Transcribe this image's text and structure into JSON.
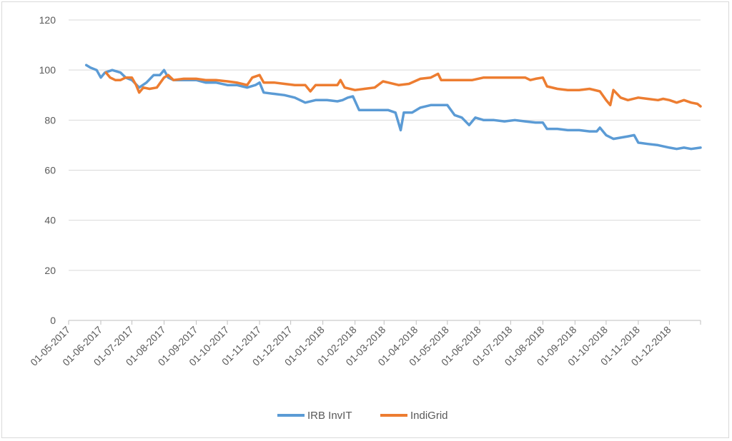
{
  "chart_data": {
    "type": "line",
    "title": "",
    "xlabel": "",
    "ylabel": "",
    "ylim": [
      0,
      120
    ],
    "yticks": [
      0,
      20,
      40,
      60,
      80,
      100,
      120
    ],
    "xlim": [
      "2017-05-01",
      "2018-12-31"
    ],
    "xticks": [
      "01-05-2017",
      "01-06-2017",
      "01-07-2017",
      "01-08-2017",
      "01-09-2017",
      "01-10-2017",
      "01-11-2017",
      "01-12-2017",
      "01-01-2018",
      "01-02-2018",
      "01-03-2018",
      "01-04-2018",
      "01-05-2018",
      "01-06-2018",
      "01-07-2018",
      "01-08-2018",
      "01-09-2018",
      "01-10-2018",
      "01-11-2018",
      "01-12-2018"
    ],
    "grid": true,
    "legend": "bottom",
    "series": [
      {
        "name": "IRB InvIT",
        "color": "#5b9bd5",
        "points": [
          [
            "2017-05-18",
            102
          ],
          [
            "2017-05-22",
            101
          ],
          [
            "2017-05-28",
            100
          ],
          [
            "2017-06-01",
            97
          ],
          [
            "2017-06-05",
            99
          ],
          [
            "2017-06-12",
            100
          ],
          [
            "2017-06-20",
            99
          ],
          [
            "2017-06-25",
            97
          ],
          [
            "2017-07-01",
            96
          ],
          [
            "2017-07-08",
            93
          ],
          [
            "2017-07-15",
            95
          ],
          [
            "2017-07-22",
            98
          ],
          [
            "2017-07-28",
            98
          ],
          [
            "2017-08-01",
            100
          ],
          [
            "2017-08-05",
            97
          ],
          [
            "2017-08-10",
            96
          ],
          [
            "2017-08-20",
            96
          ],
          [
            "2017-09-01",
            96
          ],
          [
            "2017-09-10",
            95
          ],
          [
            "2017-09-20",
            95
          ],
          [
            "2017-10-01",
            94
          ],
          [
            "2017-10-10",
            94
          ],
          [
            "2017-10-20",
            93
          ],
          [
            "2017-10-28",
            94
          ],
          [
            "2017-11-01",
            95
          ],
          [
            "2017-11-05",
            91
          ],
          [
            "2017-11-15",
            90.5
          ],
          [
            "2017-11-25",
            90
          ],
          [
            "2017-12-05",
            89
          ],
          [
            "2017-12-15",
            87
          ],
          [
            "2017-12-25",
            88
          ],
          [
            "2018-01-05",
            88
          ],
          [
            "2018-01-15",
            87.5
          ],
          [
            "2018-01-20",
            88
          ],
          [
            "2018-01-25",
            89
          ],
          [
            "2018-01-30",
            89.5
          ],
          [
            "2018-02-05",
            84
          ],
          [
            "2018-02-15",
            84
          ],
          [
            "2018-02-25",
            84
          ],
          [
            "2018-03-05",
            84
          ],
          [
            "2018-03-12",
            83
          ],
          [
            "2018-03-17",
            76
          ],
          [
            "2018-03-20",
            83
          ],
          [
            "2018-03-28",
            83
          ],
          [
            "2018-04-05",
            85
          ],
          [
            "2018-04-15",
            86
          ],
          [
            "2018-04-25",
            86
          ],
          [
            "2018-05-01",
            86
          ],
          [
            "2018-05-08",
            82
          ],
          [
            "2018-05-15",
            81
          ],
          [
            "2018-05-22",
            78
          ],
          [
            "2018-05-28",
            81
          ],
          [
            "2018-06-05",
            80
          ],
          [
            "2018-06-15",
            80
          ],
          [
            "2018-06-25",
            79.5
          ],
          [
            "2018-07-05",
            80
          ],
          [
            "2018-07-15",
            79.5
          ],
          [
            "2018-07-25",
            79
          ],
          [
            "2018-08-01",
            79
          ],
          [
            "2018-08-05",
            76.5
          ],
          [
            "2018-08-15",
            76.5
          ],
          [
            "2018-08-25",
            76
          ],
          [
            "2018-09-05",
            76
          ],
          [
            "2018-09-15",
            75.5
          ],
          [
            "2018-09-22",
            75.5
          ],
          [
            "2018-09-25",
            77
          ],
          [
            "2018-10-01",
            74
          ],
          [
            "2018-10-08",
            72.5
          ],
          [
            "2018-10-15",
            73
          ],
          [
            "2018-10-22",
            73.5
          ],
          [
            "2018-10-28",
            74
          ],
          [
            "2018-11-01",
            71
          ],
          [
            "2018-11-10",
            70.5
          ],
          [
            "2018-11-20",
            70
          ],
          [
            "2018-12-01",
            69
          ],
          [
            "2018-12-08",
            68.5
          ],
          [
            "2018-12-15",
            69
          ],
          [
            "2018-12-22",
            68.5
          ],
          [
            "2018-12-31",
            69
          ]
        ]
      },
      {
        "name": "IndiGrid",
        "color": "#ed7d31",
        "points": [
          [
            "2017-06-06",
            99
          ],
          [
            "2017-06-10",
            97
          ],
          [
            "2017-06-15",
            96
          ],
          [
            "2017-06-20",
            96
          ],
          [
            "2017-06-25",
            97
          ],
          [
            "2017-07-01",
            97
          ],
          [
            "2017-07-05",
            94
          ],
          [
            "2017-07-08",
            91
          ],
          [
            "2017-07-12",
            93
          ],
          [
            "2017-07-18",
            92.5
          ],
          [
            "2017-07-25",
            93
          ],
          [
            "2017-08-01",
            97
          ],
          [
            "2017-08-05",
            98
          ],
          [
            "2017-08-10",
            96
          ],
          [
            "2017-08-20",
            96.5
          ],
          [
            "2017-09-01",
            96.5
          ],
          [
            "2017-09-10",
            96
          ],
          [
            "2017-09-20",
            96
          ],
          [
            "2017-10-01",
            95.5
          ],
          [
            "2017-10-10",
            95
          ],
          [
            "2017-10-20",
            94
          ],
          [
            "2017-10-25",
            97
          ],
          [
            "2017-11-01",
            98
          ],
          [
            "2017-11-05",
            95
          ],
          [
            "2017-11-15",
            95
          ],
          [
            "2017-11-25",
            94.5
          ],
          [
            "2017-12-05",
            94
          ],
          [
            "2017-12-15",
            94
          ],
          [
            "2017-12-20",
            91.5
          ],
          [
            "2017-12-25",
            94
          ],
          [
            "2018-01-05",
            94
          ],
          [
            "2018-01-15",
            94
          ],
          [
            "2018-01-18",
            96
          ],
          [
            "2018-01-22",
            93
          ],
          [
            "2018-02-01",
            92
          ],
          [
            "2018-02-10",
            92.5
          ],
          [
            "2018-02-20",
            93
          ],
          [
            "2018-02-28",
            95.5
          ],
          [
            "2018-03-05",
            95
          ],
          [
            "2018-03-15",
            94
          ],
          [
            "2018-03-25",
            94.5
          ],
          [
            "2018-04-05",
            96.5
          ],
          [
            "2018-04-15",
            97
          ],
          [
            "2018-04-22",
            98.5
          ],
          [
            "2018-04-25",
            96
          ],
          [
            "2018-05-05",
            96
          ],
          [
            "2018-05-15",
            96
          ],
          [
            "2018-05-25",
            96
          ],
          [
            "2018-06-05",
            97
          ],
          [
            "2018-06-15",
            97
          ],
          [
            "2018-06-25",
            97
          ],
          [
            "2018-07-05",
            97
          ],
          [
            "2018-07-15",
            97
          ],
          [
            "2018-07-20",
            96
          ],
          [
            "2018-07-25",
            96.5
          ],
          [
            "2018-08-01",
            97
          ],
          [
            "2018-08-05",
            93.5
          ],
          [
            "2018-08-15",
            92.5
          ],
          [
            "2018-08-25",
            92
          ],
          [
            "2018-09-05",
            92
          ],
          [
            "2018-09-15",
            92.5
          ],
          [
            "2018-09-25",
            91.5
          ],
          [
            "2018-10-01",
            88
          ],
          [
            "2018-10-05",
            86
          ],
          [
            "2018-10-08",
            92
          ],
          [
            "2018-10-15",
            89
          ],
          [
            "2018-10-22",
            88
          ],
          [
            "2018-11-01",
            89
          ],
          [
            "2018-11-10",
            88.5
          ],
          [
            "2018-11-20",
            88
          ],
          [
            "2018-11-25",
            88.5
          ],
          [
            "2018-12-01",
            88
          ],
          [
            "2018-12-08",
            87
          ],
          [
            "2018-12-15",
            88
          ],
          [
            "2018-12-22",
            87
          ],
          [
            "2018-12-28",
            86.5
          ],
          [
            "2018-12-31",
            85.5
          ]
        ]
      }
    ]
  }
}
